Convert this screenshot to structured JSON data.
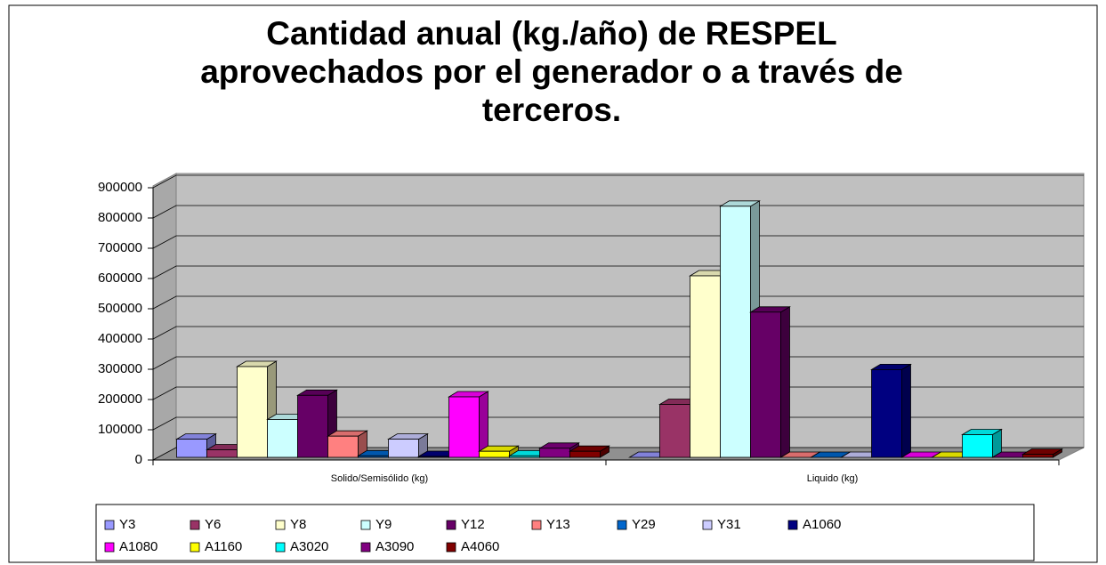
{
  "chart_data": {
    "type": "bar3d",
    "title": "Cantidad anual (kg./año) de RESPEL aprovechados por el generador o a través de terceros.",
    "categories": [
      "Solido/Semisólido (kg)",
      "Liquido (kg)"
    ],
    "series": [
      {
        "name": "Y3",
        "color": "#9999ff",
        "values": [
          60000,
          0
        ]
      },
      {
        "name": "Y6",
        "color": "#993366",
        "values": [
          25000,
          175000
        ]
      },
      {
        "name": "Y8",
        "color": "#ffffcc",
        "values": [
          300000,
          600000
        ]
      },
      {
        "name": "Y9",
        "color": "#ccffff",
        "values": [
          125000,
          830000
        ]
      },
      {
        "name": "Y12",
        "color": "#660066",
        "values": [
          205000,
          480000
        ]
      },
      {
        "name": "Y13",
        "color": "#ff8080",
        "values": [
          70000,
          0
        ]
      },
      {
        "name": "Y29",
        "color": "#0066cc",
        "values": [
          5000,
          0
        ]
      },
      {
        "name": "Y31",
        "color": "#ccccff",
        "values": [
          60000,
          0
        ]
      },
      {
        "name": "A1060",
        "color": "#000080",
        "values": [
          3000,
          290000
        ]
      },
      {
        "name": "A1080",
        "color": "#ff00ff",
        "values": [
          200000,
          0
        ]
      },
      {
        "name": "A1160",
        "color": "#ffff00",
        "values": [
          20000,
          0
        ]
      },
      {
        "name": "A3020",
        "color": "#00ffff",
        "values": [
          5000,
          75000
        ]
      },
      {
        "name": "A3090",
        "color": "#800080",
        "values": [
          30000,
          0
        ]
      },
      {
        "name": "A4060",
        "color": "#800000",
        "values": [
          20000,
          10000
        ]
      }
    ],
    "ylim": [
      0,
      900000
    ],
    "yticks": [
      0,
      100000,
      200000,
      300000,
      400000,
      500000,
      600000,
      700000,
      800000,
      900000
    ],
    "grid": true,
    "legend": "bottom"
  }
}
